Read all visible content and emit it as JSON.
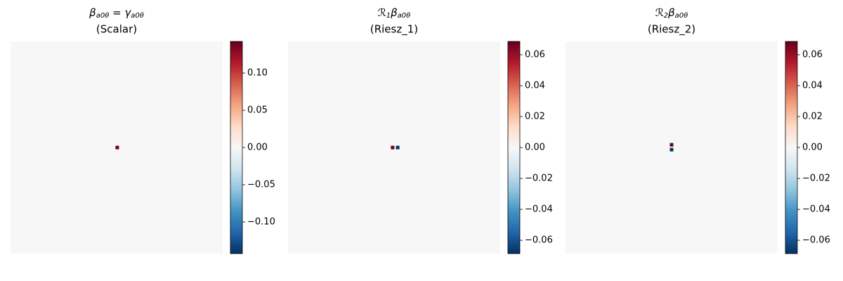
{
  "chart_data": [
    {
      "type": "heatmap",
      "title": [
        {
          "text": "β"
        },
        {
          "text": "a0θ",
          "sub": true
        },
        {
          "text": " = γ"
        },
        {
          "text": "a0θ",
          "sub": true
        }
      ],
      "subtitle": "(Scalar)",
      "clim": [
        -0.1425,
        0.1425
      ],
      "cticks": [
        {
          "value": -0.1,
          "label": "−0.10"
        },
        {
          "value": -0.05,
          "label": "−0.05"
        },
        {
          "value": 0,
          "label": "0.00"
        },
        {
          "value": 0.05,
          "label": "0.05"
        },
        {
          "value": 0.1,
          "label": "0.10"
        }
      ],
      "spots": [
        {
          "x": 0.503,
          "y": 0.5,
          "value": 0.1425
        }
      ]
    },
    {
      "type": "heatmap",
      "title": [
        {
          "text": "ℛ"
        },
        {
          "text": "1",
          "sub": true
        },
        {
          "text": "β"
        },
        {
          "text": "a0θ",
          "sub": true
        }
      ],
      "subtitle": "(Riesz_1)",
      "clim": [
        -0.0686,
        0.0686
      ],
      "cticks": [
        {
          "value": -0.06,
          "label": "−0.06"
        },
        {
          "value": -0.04,
          "label": "−0.04"
        },
        {
          "value": -0.02,
          "label": "−0.02"
        },
        {
          "value": 0,
          "label": "0.00"
        },
        {
          "value": 0.02,
          "label": "0.02"
        },
        {
          "value": 0.04,
          "label": "0.04"
        },
        {
          "value": 0.06,
          "label": "0.06"
        }
      ],
      "spots": [
        {
          "x": 0.493,
          "y": 0.5,
          "value": 0.0686
        },
        {
          "x": 0.517,
          "y": 0.5,
          "value": -0.0686
        }
      ]
    },
    {
      "type": "heatmap",
      "title": [
        {
          "text": "ℛ"
        },
        {
          "text": "2",
          "sub": true
        },
        {
          "text": "β"
        },
        {
          "text": "a0θ",
          "sub": true
        }
      ],
      "subtitle": "(Riesz_2)",
      "clim": [
        -0.0686,
        0.0686
      ],
      "cticks": [
        {
          "value": -0.06,
          "label": "−0.06"
        },
        {
          "value": -0.04,
          "label": "−0.04"
        },
        {
          "value": -0.02,
          "label": "−0.02"
        },
        {
          "value": 0,
          "label": "0.00"
        },
        {
          "value": 0.02,
          "label": "0.02"
        },
        {
          "value": 0.04,
          "label": "0.04"
        },
        {
          "value": 0.06,
          "label": "0.06"
        }
      ],
      "spots": [
        {
          "x": 0.5,
          "y": 0.487,
          "value": 0.0686
        },
        {
          "x": 0.5,
          "y": 0.51,
          "value": -0.0686
        }
      ]
    }
  ]
}
